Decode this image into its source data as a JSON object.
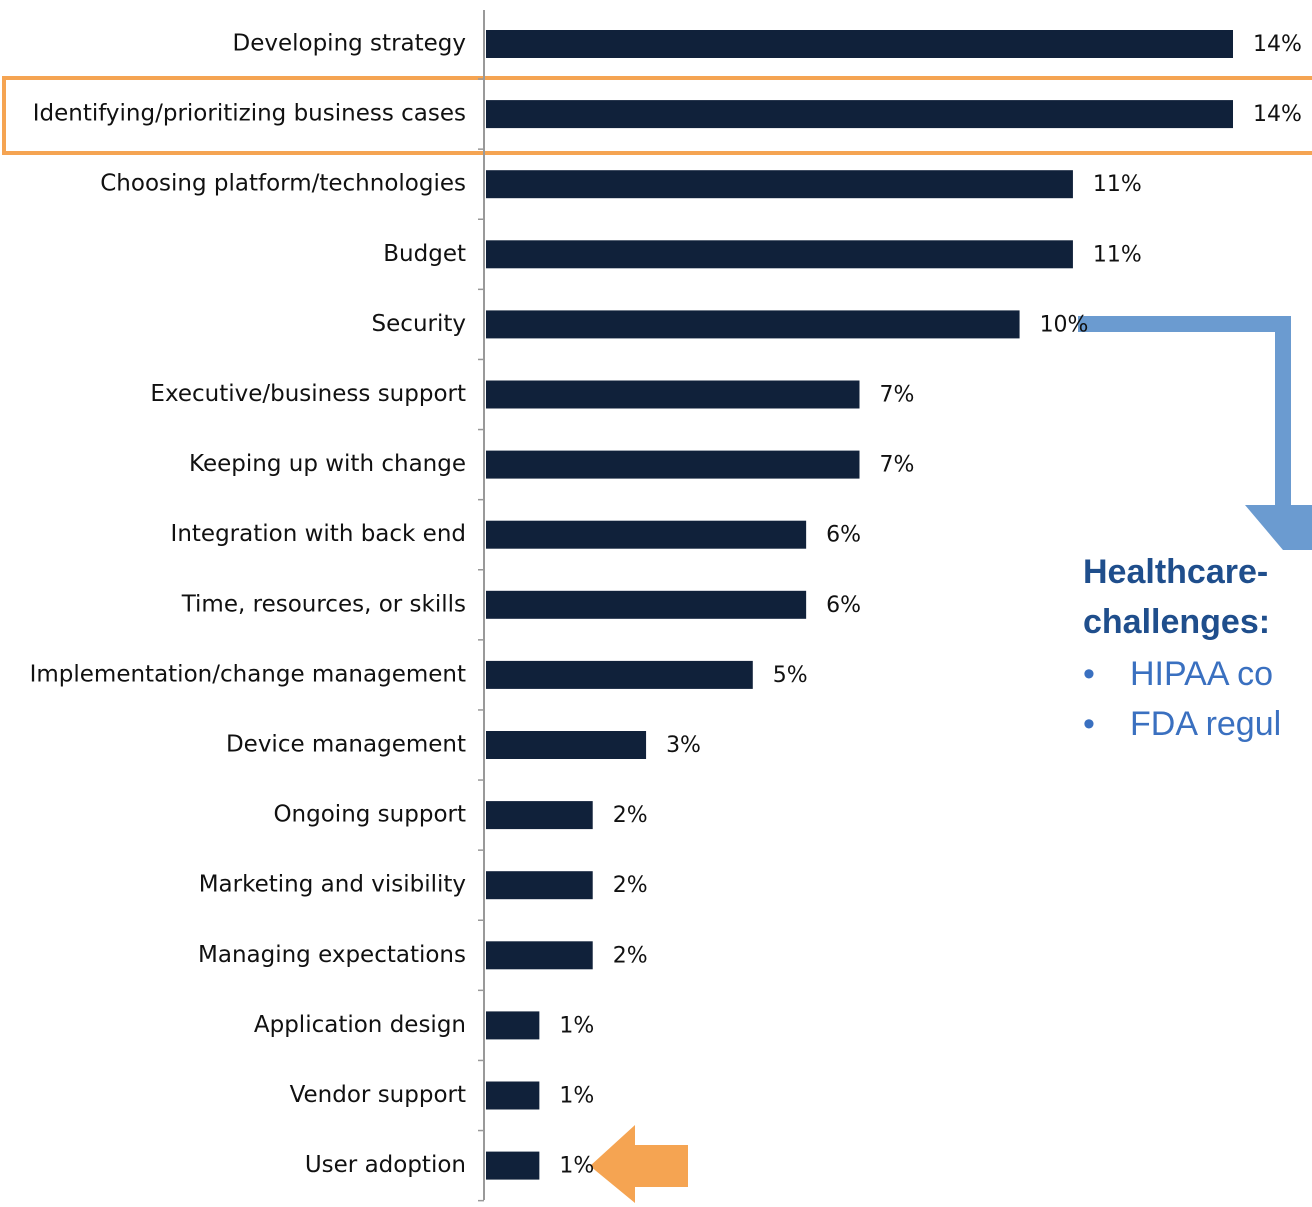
{
  "chart_data": {
    "type": "bar",
    "orientation": "horizontal",
    "color": "#10213a",
    "categories": [
      "Developing strategy",
      "Identifying/prioritizing business cases",
      "Choosing platform/technologies",
      "Budget",
      "Security",
      "Executive/business support",
      "Keeping up with change",
      "Integration with back end",
      "Time, resources, or skills",
      "Implementation/change management",
      "Device management",
      "Ongoing support",
      "Marketing and visibility",
      "Managing expectations",
      "Application design",
      "Vendor support",
      "User adoption"
    ],
    "values": [
      14,
      14,
      11,
      11,
      10,
      7,
      7,
      6,
      6,
      5,
      3,
      2,
      2,
      2,
      1,
      1,
      1
    ],
    "value_labels": [
      "14%",
      "14%",
      "11%",
      "11%",
      "10%",
      "7%",
      "7%",
      "6%",
      "6%",
      "5%",
      "3%",
      "2%",
      "2%",
      "2%",
      "1%",
      "1%",
      "1%"
    ],
    "annotation": {
      "heading": [
        "Healthcare-",
        "challenges:"
      ],
      "bullets": [
        "HIPAA co",
        "FDA regul"
      ]
    }
  }
}
